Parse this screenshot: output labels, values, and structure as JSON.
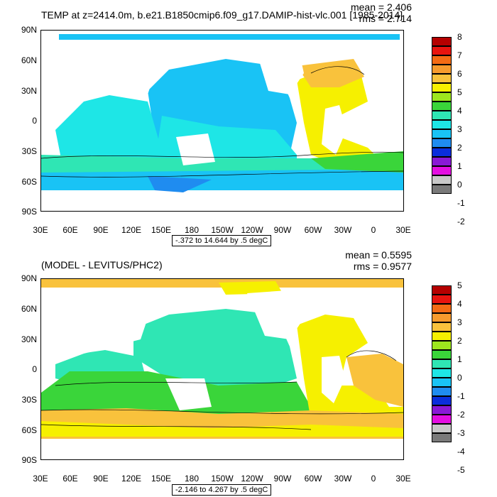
{
  "top_panel": {
    "title": "TEMP at z=2414.0m, b.e21.B1850cmip6.f09_g17.DAMIP-hist-vlc.001 [1985-2014]",
    "mean_text": "mean = 2.406",
    "rms_text": "rms = 2.714",
    "range_text": "-.372 to 14.644 by .5 degC",
    "colorbar_labels": [
      "8",
      "7",
      "6",
      "5",
      "4",
      "3",
      "2",
      "1",
      "0",
      "-1",
      "-2"
    ],
    "colorbar_colors": [
      "#b50000",
      "#e8140f",
      "#f46b14",
      "#f79b2d",
      "#f9c23c",
      "#f6f000",
      "#9ee61e",
      "#3ad53a",
      "#2fe6b4",
      "#1ee6e6",
      "#19c3f5",
      "#1f8cf0",
      "#0a2edc",
      "#8a19d6",
      "#e40ee1",
      "#c8c8c8",
      "#7a7a7a"
    ]
  },
  "bottom_panel": {
    "title": "(MODEL - LEVITUS/PHC2)",
    "mean_text": "mean = 0.5595",
    "rms_text": "rms = 0.9577",
    "range_text": "-2.146 to 4.267 by .5 degC",
    "colorbar_labels": [
      "5",
      "4",
      "3",
      "2",
      "1",
      "0",
      "-1",
      "-2",
      "-3",
      "-4",
      "-5"
    ],
    "colorbar_colors": [
      "#b50000",
      "#e8140f",
      "#f46b14",
      "#f79b2d",
      "#f9c23c",
      "#f6f000",
      "#9ee61e",
      "#3ad53a",
      "#2fe6b4",
      "#1ee6e6",
      "#19c3f5",
      "#1f8cf0",
      "#0a2edc",
      "#8a19d6",
      "#e40ee1",
      "#c8c8c8",
      "#7a7a7a"
    ]
  },
  "axes": {
    "lat_labels": [
      "90N",
      "60N",
      "30N",
      "0",
      "30S",
      "60S",
      "90S"
    ],
    "lon_labels": [
      "30E",
      "60E",
      "90E",
      "120E",
      "150E",
      "180",
      "150W",
      "120W",
      "90W",
      "60W",
      "30W",
      "0",
      "30E"
    ]
  },
  "colors": {
    "background": "#ffffff",
    "land": "#ffffff",
    "frame": "#000000"
  }
}
